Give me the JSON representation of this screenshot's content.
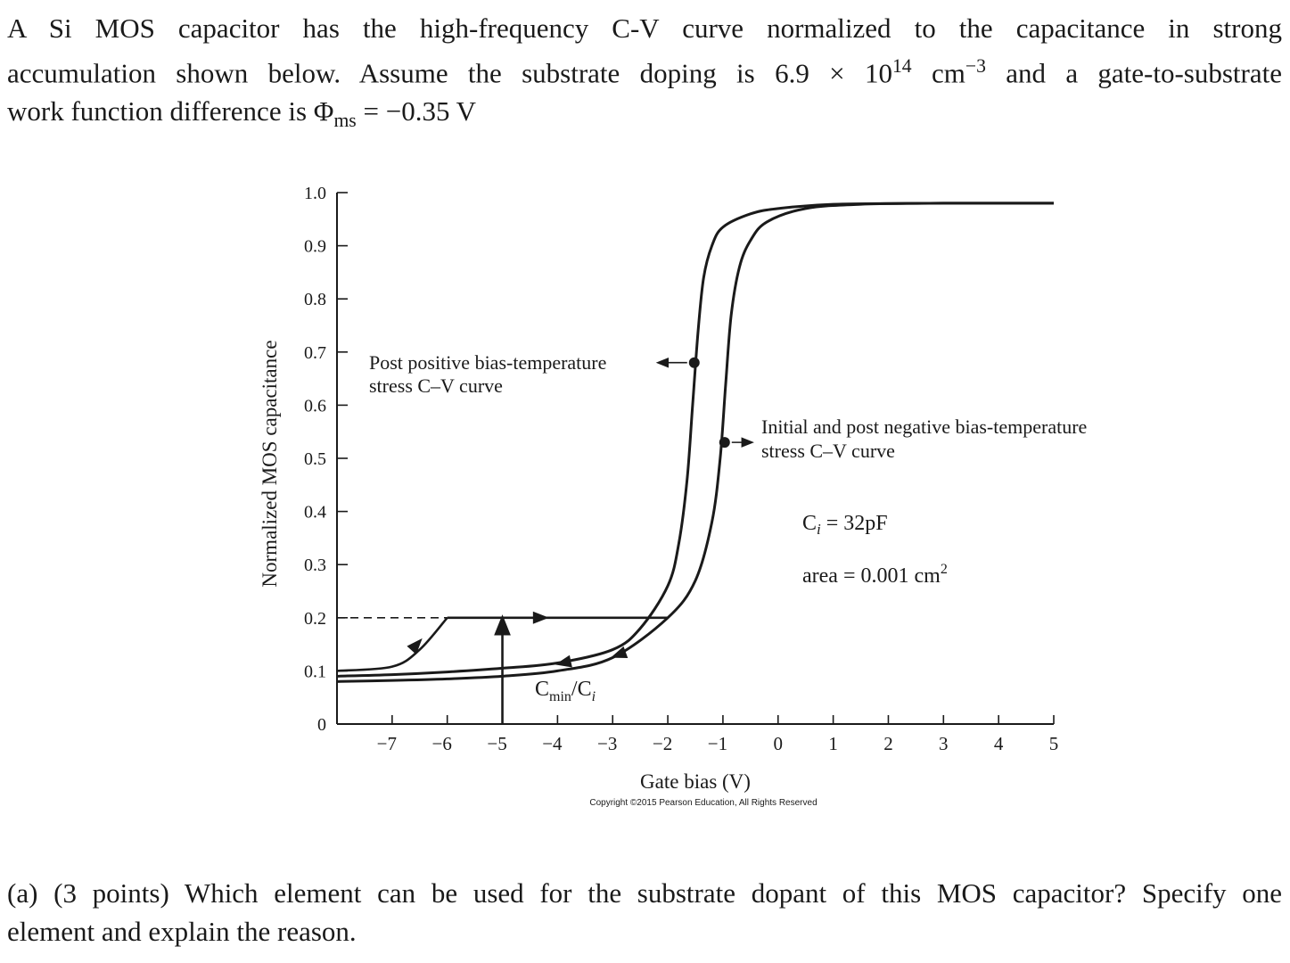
{
  "problem": {
    "line1": "A Si MOS capacitor has the high-frequency C-V curve normalized to the capacitance in strong",
    "line2_a": "accumulation shown below. Assume the substrate doping is ",
    "doping_mantissa": "6.9 × 10",
    "doping_exp": "14",
    "doping_unit": " cm",
    "doping_unit_exp": "−3",
    "line2_b": " and a gate-to-substrate",
    "line3_a": "work function difference is ",
    "phi_symbol": "Φ",
    "phi_sub": "ms",
    "phi_value": " = −0.35 V"
  },
  "question": {
    "line1": "(a) (3 points) Which element can be used for the substrate dopant of this MOS capacitor? Specify one",
    "line2": "element and explain the reason."
  },
  "chart_data": {
    "type": "line",
    "xlabel": "Gate bias (V)",
    "ylabel": "Normalized MOS capacitance",
    "xlim": [
      -8,
      5
    ],
    "ylim": [
      0,
      1.0
    ],
    "x_ticks": [
      -7,
      -6,
      -5,
      -4,
      -3,
      -2,
      -1,
      0,
      1,
      2,
      3,
      4,
      5
    ],
    "x_tick_labels": [
      "−7",
      "−6",
      "−5",
      "−4",
      "−3",
      "−2",
      "−1",
      "0",
      "1",
      "2",
      "3",
      "4",
      "5"
    ],
    "y_ticks": [
      0,
      0.1,
      0.2,
      0.3,
      0.4,
      0.5,
      0.6,
      0.7,
      0.8,
      0.9,
      1.0
    ],
    "y_tick_labels": [
      "0",
      "0.1",
      "0.2",
      "0.3",
      "0.4",
      "0.5",
      "0.6",
      "0.7",
      "0.8",
      "0.9",
      "1.0"
    ],
    "series": [
      {
        "name": "Post positive bias-temperature stress C–V curve",
        "points": [
          [
            -8,
            0.09
          ],
          [
            -7,
            0.093
          ],
          [
            -6,
            0.098
          ],
          [
            -5,
            0.105
          ],
          [
            -4,
            0.115
          ],
          [
            -3,
            0.14
          ],
          [
            -2.5,
            0.18
          ],
          [
            -2,
            0.26
          ],
          [
            -1.8,
            0.34
          ],
          [
            -1.65,
            0.46
          ],
          [
            -1.55,
            0.6
          ],
          [
            -1.45,
            0.74
          ],
          [
            -1.35,
            0.84
          ],
          [
            -1.2,
            0.9
          ],
          [
            -1,
            0.935
          ],
          [
            -0.5,
            0.96
          ],
          [
            0,
            0.97
          ],
          [
            1,
            0.978
          ],
          [
            3,
            0.98
          ],
          [
            5,
            0.98
          ]
        ]
      },
      {
        "name": "Initial and post negative bias-temperature stress C–V curve",
        "points": [
          [
            -8,
            0.08
          ],
          [
            -7,
            0.082
          ],
          [
            -6,
            0.085
          ],
          [
            -5,
            0.09
          ],
          [
            -4,
            0.1
          ],
          [
            -3,
            0.125
          ],
          [
            -2,
            0.2
          ],
          [
            -1.5,
            0.27
          ],
          [
            -1.2,
            0.38
          ],
          [
            -1.05,
            0.5
          ],
          [
            -0.95,
            0.64
          ],
          [
            -0.85,
            0.77
          ],
          [
            -0.7,
            0.86
          ],
          [
            -0.5,
            0.91
          ],
          [
            -0.2,
            0.945
          ],
          [
            0.5,
            0.97
          ],
          [
            1.5,
            0.978
          ],
          [
            3,
            0.98
          ],
          [
            5,
            0.98
          ]
        ]
      }
    ],
    "hysteresis_path": [
      [
        -8,
        0.1
      ],
      [
        -7,
        0.108
      ],
      [
        -6.5,
        0.14
      ],
      [
        -6,
        0.2
      ],
      [
        -2,
        0.2
      ]
    ],
    "vertical_arrow_x": -5,
    "dashed_level": 0.2,
    "label_pos": "Post positive bias-temperature",
    "label_pos_2": "stress C–V curve",
    "label_neg": "Initial and post negative bias-temperature",
    "label_neg_2": "stress C–V curve",
    "ci_label": "C",
    "ci_sub": "i",
    "ci_value": " = 32pF",
    "area_label": "area = 0.001 cm",
    "area_sup": "2",
    "cmin_label": "C",
    "cmin_sub": "min",
    "cmin_slash": "/C",
    "cmin_sub2": "i",
    "copyright": "Copyright ©2015 Pearson Education, All Rights Reserved"
  }
}
